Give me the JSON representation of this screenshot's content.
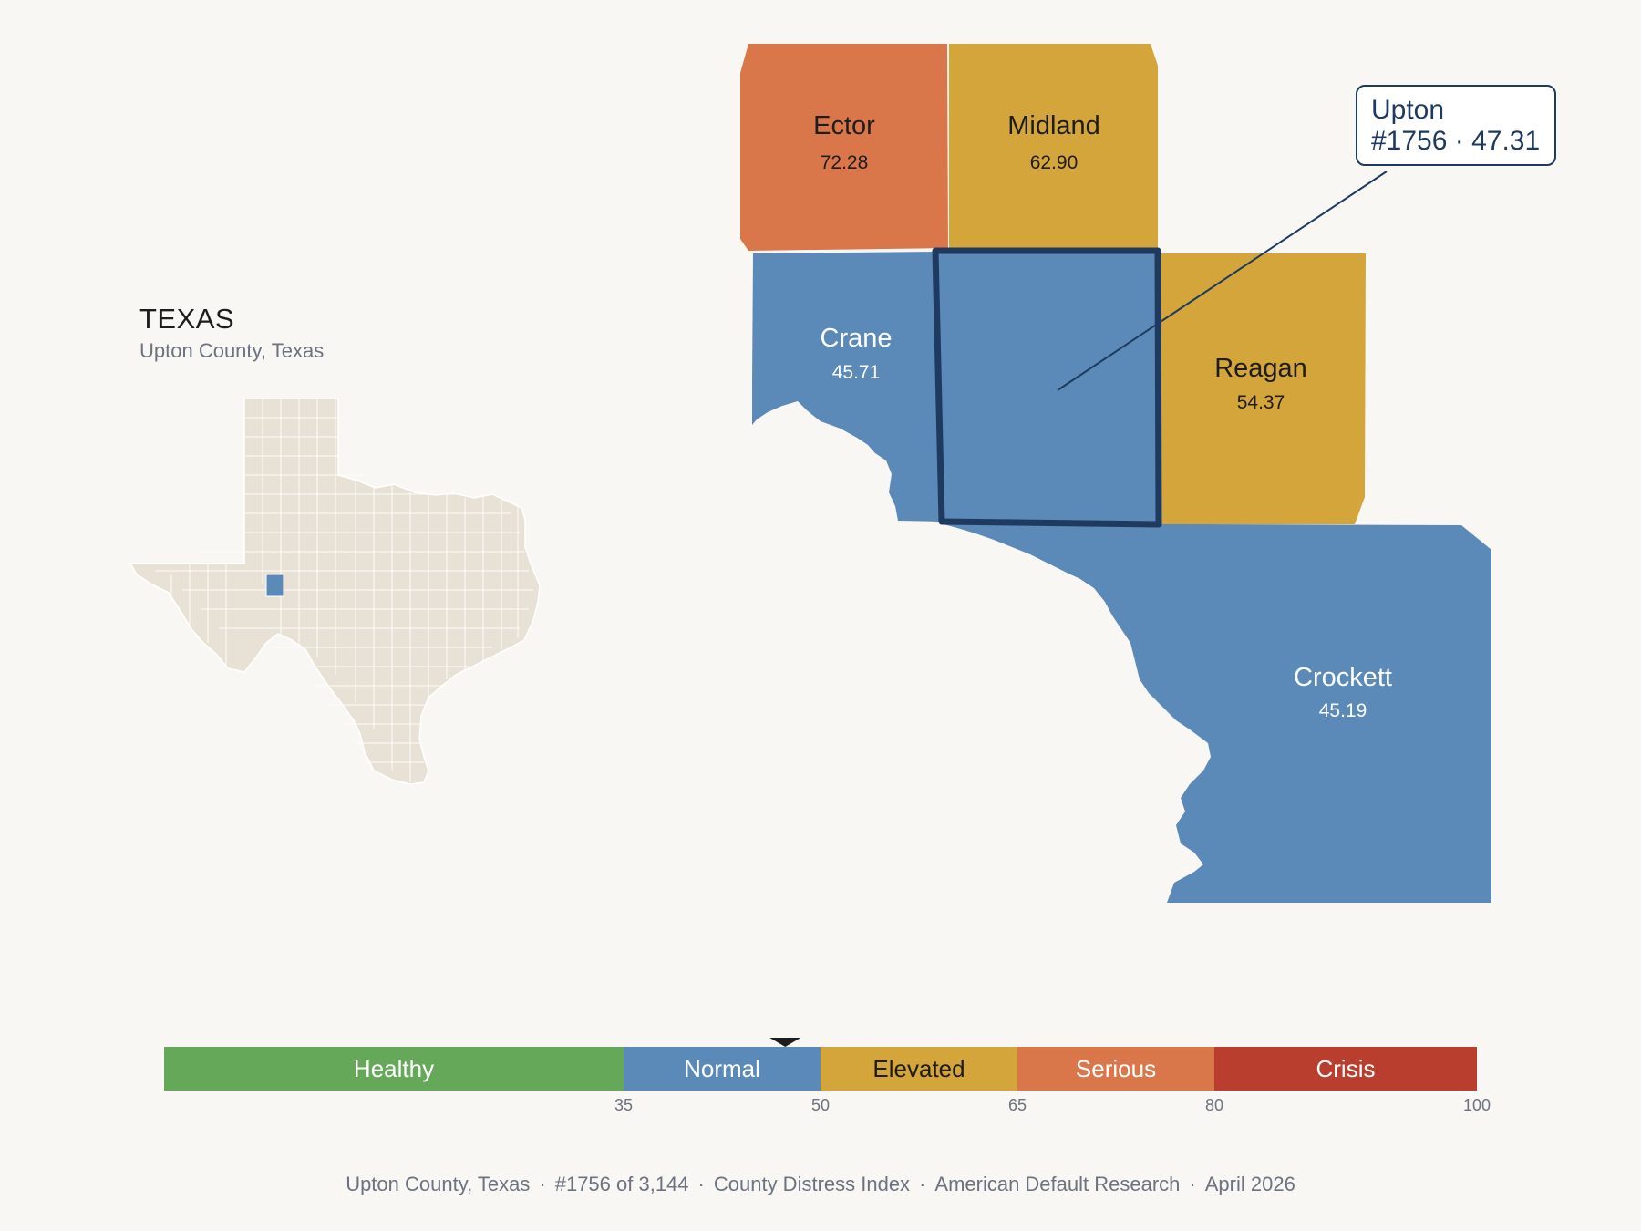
{
  "inset": {
    "state": "TEXAS",
    "subtitle": "Upton County, Texas"
  },
  "counties": [
    {
      "name": "Ector",
      "score": "72.28",
      "color": "#d9774a",
      "label_color": "#1d1d1d"
    },
    {
      "name": "Midland",
      "score": "62.90",
      "color": "#d4a53b",
      "label_color": "#1d1d1d"
    },
    {
      "name": "Crane",
      "score": "45.71",
      "color": "#5b8ab8",
      "label_color": "#ffffff"
    },
    {
      "name": "Reagan",
      "score": "54.37",
      "color": "#d4a53b",
      "label_color": "#1d1d1d"
    },
    {
      "name": "Crockett",
      "score": "45.19",
      "color": "#5b8ab8",
      "label_color": "#ffffff"
    }
  ],
  "focus": {
    "name": "Upton",
    "rank_score": "#1756 · 47.31",
    "score": 47.31,
    "color": "#5b8ab8",
    "outline_color": "#1f3a5f"
  },
  "legend": {
    "segments": [
      {
        "label": "Healthy",
        "from": 0,
        "to": 35,
        "color": "#66a85a",
        "label_color": "#ffffff"
      },
      {
        "label": "Normal",
        "from": 35,
        "to": 50,
        "color": "#5b8ab8",
        "label_color": "#ffffff"
      },
      {
        "label": "Elevated",
        "from": 50,
        "to": 65,
        "color": "#d4a53b",
        "label_color": "#1d1d1d"
      },
      {
        "label": "Serious",
        "from": 65,
        "to": 80,
        "color": "#d9774a",
        "label_color": "#ffffff"
      },
      {
        "label": "Crisis",
        "from": 80,
        "to": 100,
        "color": "#b93e2e",
        "label_color": "#ffffff"
      }
    ],
    "ticks": [
      "35",
      "50",
      "65",
      "80",
      "100"
    ],
    "marker_value": 47.31
  },
  "footer": {
    "county": "Upton County, Texas",
    "rank": "#1756 of 3,144",
    "index": "County Distress Index",
    "source": "American Default Research",
    "date": "April 2026"
  }
}
